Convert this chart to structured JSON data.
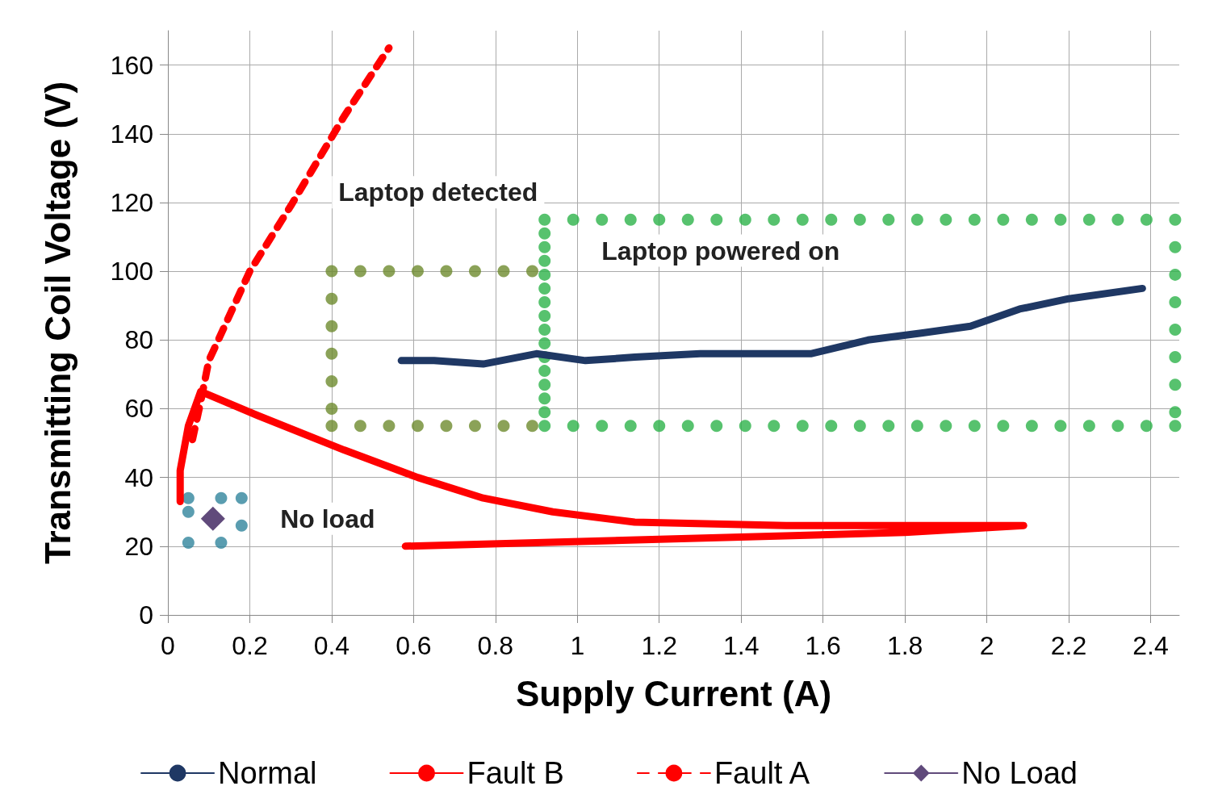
{
  "chart_data": {
    "type": "line",
    "xlabel": "Supply Current (A)",
    "ylabel": "Transmitting Coil Voltage (V)",
    "xlim": [
      0,
      2.47
    ],
    "ylim": [
      0,
      170
    ],
    "xticks": [
      0,
      0.2,
      0.4,
      0.6,
      0.8,
      1,
      1.2,
      1.4,
      1.6,
      1.8,
      2,
      2.2,
      2.4
    ],
    "yticks": [
      0,
      20,
      40,
      60,
      80,
      100,
      120,
      140,
      160
    ],
    "grid": true,
    "legend": "bottom",
    "line_style": "solid",
    "marker": "none",
    "series": [
      {
        "name": "Normal",
        "color": "#1f3864",
        "x": [
          0.57,
          0.65,
          0.77,
          0.9,
          1.02,
          1.14,
          1.3,
          1.57,
          1.71,
          1.84,
          1.96,
          2.08,
          2.2,
          2.38
        ],
        "values": [
          74,
          74,
          73,
          76,
          74,
          75,
          76,
          76,
          80,
          82,
          84,
          89,
          92,
          95
        ]
      },
      {
        "name": "Fault B",
        "color": "#ff0000",
        "x": [
          0.58,
          1.2,
          1.8,
          2.09,
          1.8,
          1.51,
          1.14,
          0.94,
          0.77,
          0.61,
          0.43,
          0.22,
          0.08,
          0.05,
          0.03,
          0.03
        ],
        "values": [
          20,
          22,
          24,
          26,
          26,
          26,
          27,
          30,
          34,
          40,
          48,
          58,
          65,
          55,
          42,
          33
        ]
      },
      {
        "name": "Fault A",
        "color": "#ff0000",
        "line_style": "dashed",
        "x": [
          0.06,
          0.08,
          0.1,
          0.2,
          0.3,
          0.43,
          0.54
        ],
        "values": [
          51,
          62,
          74,
          100,
          119,
          145,
          165
        ]
      },
      {
        "name": "No Load",
        "color": "#604a7b",
        "marker": "diamond",
        "x": [
          0.11
        ],
        "values": [
          28
        ]
      },
      {
        "type": "scatter",
        "marker": "circle",
        "color": "#6e8b2e",
        "x": [
          0.4,
          0.47,
          0.54,
          0.61,
          0.68,
          0.75,
          0.82,
          0.89,
          0.4,
          0.4,
          0.4,
          0.4,
          0.4,
          0.4,
          0.47,
          0.54,
          0.61,
          0.68,
          0.75,
          0.82,
          0.89
        ],
        "values": [
          100,
          100,
          100,
          100,
          100,
          100,
          100,
          100,
          92,
          84,
          76,
          68,
          60,
          55,
          55,
          55,
          55,
          55,
          55,
          55,
          55
        ]
      },
      {
        "type": "scatter",
        "marker": "circle",
        "color": "#2db34a",
        "x": [
          0.92,
          0.99,
          1.06,
          1.13,
          1.2,
          1.27,
          1.34,
          1.41,
          1.48,
          1.55,
          1.62,
          1.69,
          1.76,
          1.83,
          1.9,
          1.97,
          2.04,
          2.11,
          2.18,
          2.25,
          2.32,
          2.39,
          2.46,
          2.46,
          2.46,
          2.46,
          2.46,
          2.46,
          2.46,
          2.46,
          0.92,
          0.99,
          1.06,
          1.13,
          1.2,
          1.27,
          1.34,
          1.41,
          1.48,
          1.55,
          1.62,
          1.69,
          1.76,
          1.83,
          1.9,
          1.97,
          2.04,
          2.11,
          2.18,
          2.25,
          2.32,
          2.39,
          2.46,
          0.92,
          0.92,
          0.92,
          0.92,
          0.92,
          0.92,
          0.92,
          0.92,
          0.92,
          0.92,
          0.92,
          0.92,
          0.92,
          0.92
        ],
        "values": [
          115,
          115,
          115,
          115,
          115,
          115,
          115,
          115,
          115,
          115,
          115,
          115,
          115,
          115,
          115,
          115,
          115,
          115,
          115,
          115,
          115,
          115,
          115,
          107,
          99,
          91,
          83,
          75,
          67,
          59,
          55,
          55,
          55,
          55,
          55,
          55,
          55,
          55,
          55,
          55,
          55,
          55,
          55,
          55,
          55,
          55,
          55,
          55,
          55,
          55,
          55,
          55,
          55,
          111,
          107,
          103,
          99,
          95,
          91,
          87,
          83,
          79,
          75,
          71,
          67,
          63,
          59
        ]
      },
      {
        "type": "scatter",
        "marker": "circle",
        "color": "#31859c",
        "x": [
          0.05,
          0.13,
          0.18,
          0.05,
          0.18,
          0.05,
          0.13
        ],
        "values": [
          34,
          34,
          34,
          30,
          26,
          21,
          21
        ]
      }
    ],
    "annotations": [
      "Laptop detected",
      "Laptop powered on",
      "No load"
    ]
  }
}
